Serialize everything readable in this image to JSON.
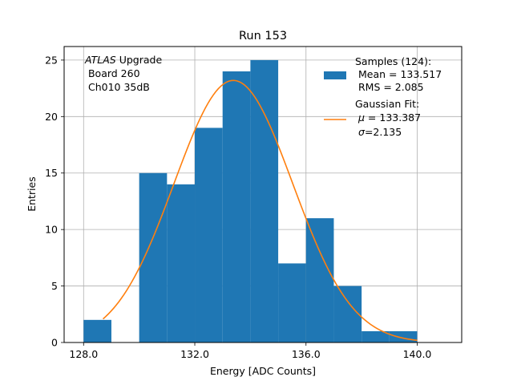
{
  "chart_data": {
    "type": "bar",
    "title": "Run 153",
    "xlabel": "Energy [ADC Counts]",
    "ylabel": "Entries",
    "xlim": [
      127.3,
      141.6
    ],
    "ylim": [
      0,
      26.2
    ],
    "xticks": [
      128,
      132,
      136,
      140
    ],
    "xtick_labels": [
      "128.0",
      "132.0",
      "136.0",
      "140.0"
    ],
    "yticks": [
      0,
      5,
      10,
      15,
      20,
      25
    ],
    "ytick_labels": [
      "0",
      "5",
      "10",
      "15",
      "20",
      "25"
    ],
    "grid": true,
    "bin_edges": [
      128,
      129,
      130,
      131,
      132,
      133,
      134,
      135,
      136,
      137,
      138,
      139,
      140
    ],
    "counts": [
      2,
      0,
      15,
      14,
      19,
      24,
      25,
      7,
      11,
      5,
      1,
      1
    ],
    "bar_color": "#1f77b4",
    "fit": {
      "name": "Gaussian Fit:",
      "mu": 133.387,
      "sigma": 2.135,
      "amplitude": 23.2,
      "x_range": [
        128.7,
        140
      ],
      "color": "#ff7f0e"
    },
    "annotation": {
      "italic": "ATLAS",
      "rest": " Upgrade",
      "line2": " Board 260",
      "line3": " Ch010 35dB"
    },
    "legend": {
      "position": "top-right",
      "samples": [
        "Samples (124):",
        " Mean = 133.517",
        " RMS = 2.085"
      ],
      "fit_title": "Gaussian Fit:",
      "mu_symbol": "μ",
      "mu_text": " = 133.387",
      "sigma_symbol": "σ",
      "sigma_text": "=2.135"
    }
  }
}
